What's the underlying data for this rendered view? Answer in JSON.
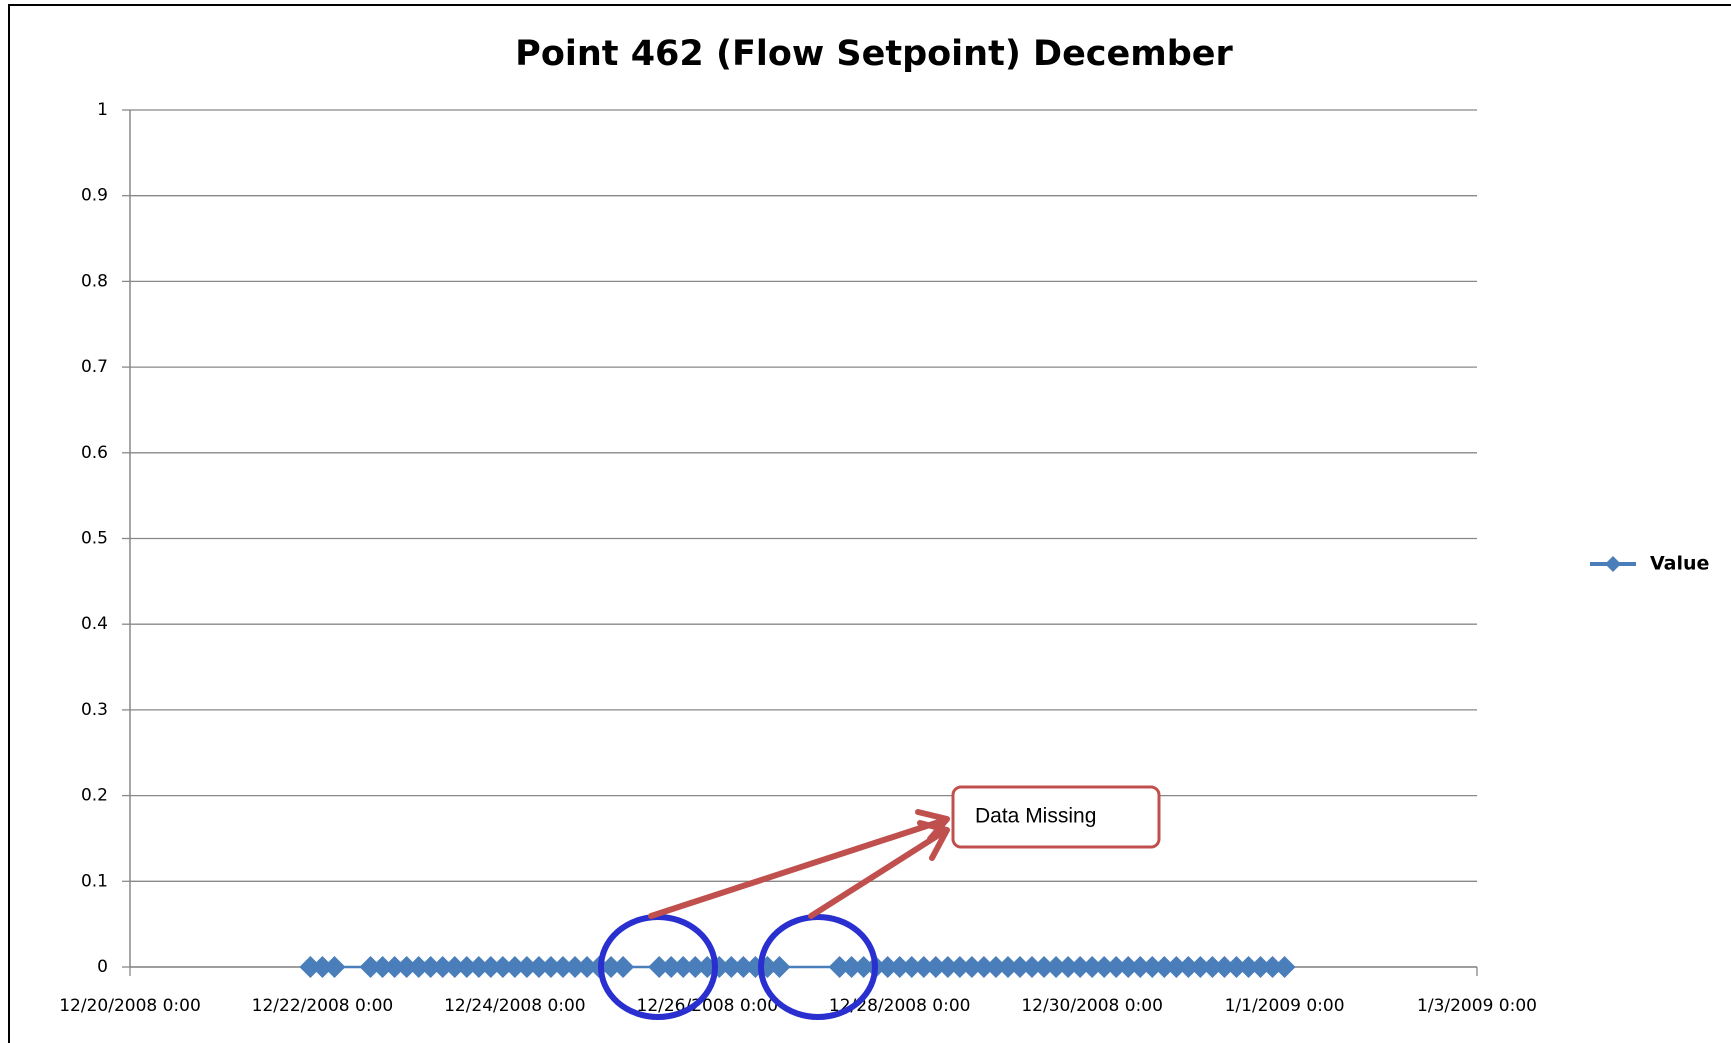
{
  "chart_data": {
    "type": "line",
    "title": "Point 462 (Flow Setpoint)  December",
    "x": [
      "12/21/2008 21:00",
      "12/22/2008 0:00",
      "12/22/2008 3:00",
      "12/22/2008 12:00",
      "12/22/2008 15:00",
      "12/22/2008 18:00",
      "12/22/2008 21:00",
      "12/23/2008 0:00",
      "12/23/2008 3:00",
      "12/23/2008 6:00",
      "12/23/2008 9:00",
      "12/23/2008 12:00",
      "12/23/2008 15:00",
      "12/23/2008 18:00",
      "12/23/2008 21:00",
      "12/24/2008 0:00",
      "12/24/2008 3:00",
      "12/24/2008 6:00",
      "12/24/2008 9:00",
      "12/24/2008 12:00",
      "12/24/2008 15:00",
      "12/24/2008 18:00",
      "12/24/2008 21:00",
      "12/25/2008 0:00",
      "12/25/2008 3:00",
      "12/25/2008 12:00",
      "12/25/2008 15:00",
      "12/25/2008 18:00",
      "12/25/2008 21:00",
      "12/26/2008 0:00",
      "12/26/2008 3:00",
      "12/26/2008 6:00",
      "12/26/2008 9:00",
      "12/26/2008 12:00",
      "12/26/2008 15:00",
      "12/26/2008 18:00",
      "12/27/2008 9:00",
      "12/27/2008 12:00",
      "12/27/2008 15:00",
      "12/27/2008 18:00",
      "12/27/2008 21:00",
      "12/28/2008 0:00",
      "12/28/2008 3:00",
      "12/28/2008 6:00",
      "12/28/2008 9:00",
      "12/28/2008 12:00",
      "12/28/2008 15:00",
      "12/28/2008 18:00",
      "12/28/2008 21:00",
      "12/29/2008 0:00",
      "12/29/2008 3:00",
      "12/29/2008 6:00",
      "12/29/2008 9:00",
      "12/29/2008 12:00",
      "12/29/2008 15:00",
      "12/29/2008 18:00",
      "12/29/2008 21:00",
      "12/30/2008 0:00",
      "12/30/2008 3:00",
      "12/30/2008 6:00",
      "12/30/2008 9:00",
      "12/30/2008 12:00",
      "12/30/2008 15:00",
      "12/30/2008 18:00",
      "12/30/2008 21:00",
      "12/31/2008 0:00",
      "12/31/2008 3:00",
      "12/31/2008 6:00",
      "12/31/2008 9:00",
      "12/31/2008 12:00",
      "12/31/2008 15:00",
      "12/31/2008 18:00",
      "12/31/2008 21:00",
      "1/1/2009 0:00"
    ],
    "series": [
      {
        "name": "Value",
        "color": "#4a7ebb",
        "values": [
          0,
          0,
          0,
          0,
          0,
          0,
          0,
          0,
          0,
          0,
          0,
          0,
          0,
          0,
          0,
          0,
          0,
          0,
          0,
          0,
          0,
          0,
          0,
          0,
          0,
          0,
          0,
          0,
          0,
          0,
          0,
          0,
          0,
          0,
          0,
          0,
          0,
          0,
          0,
          0,
          0,
          0,
          0,
          0,
          0,
          0,
          0,
          0,
          0,
          0,
          0,
          0,
          0,
          0,
          0,
          0,
          0,
          0,
          0,
          0,
          0,
          0,
          0,
          0,
          0,
          0,
          0,
          0,
          0,
          0,
          0,
          0,
          0,
          0
        ]
      }
    ],
    "xlim": [
      "12/20/2008 0:00",
      "1/3/2009 0:00"
    ],
    "xticks": [
      "12/20/2008 0:00",
      "12/22/2008 0:00",
      "12/24/2008 0:00",
      "12/26/2008 0:00",
      "12/28/2008 0:00",
      "12/30/2008 0:00",
      "1/1/2009 0:00",
      "1/3/2009 0:00"
    ],
    "ylim": [
      0,
      1
    ],
    "yticks": [
      0,
      0.1,
      0.2,
      0.3,
      0.4,
      0.5,
      0.6,
      0.7,
      0.8,
      0.9,
      1
    ],
    "grid": true,
    "legend": "right",
    "annotation": "Data Missing"
  }
}
